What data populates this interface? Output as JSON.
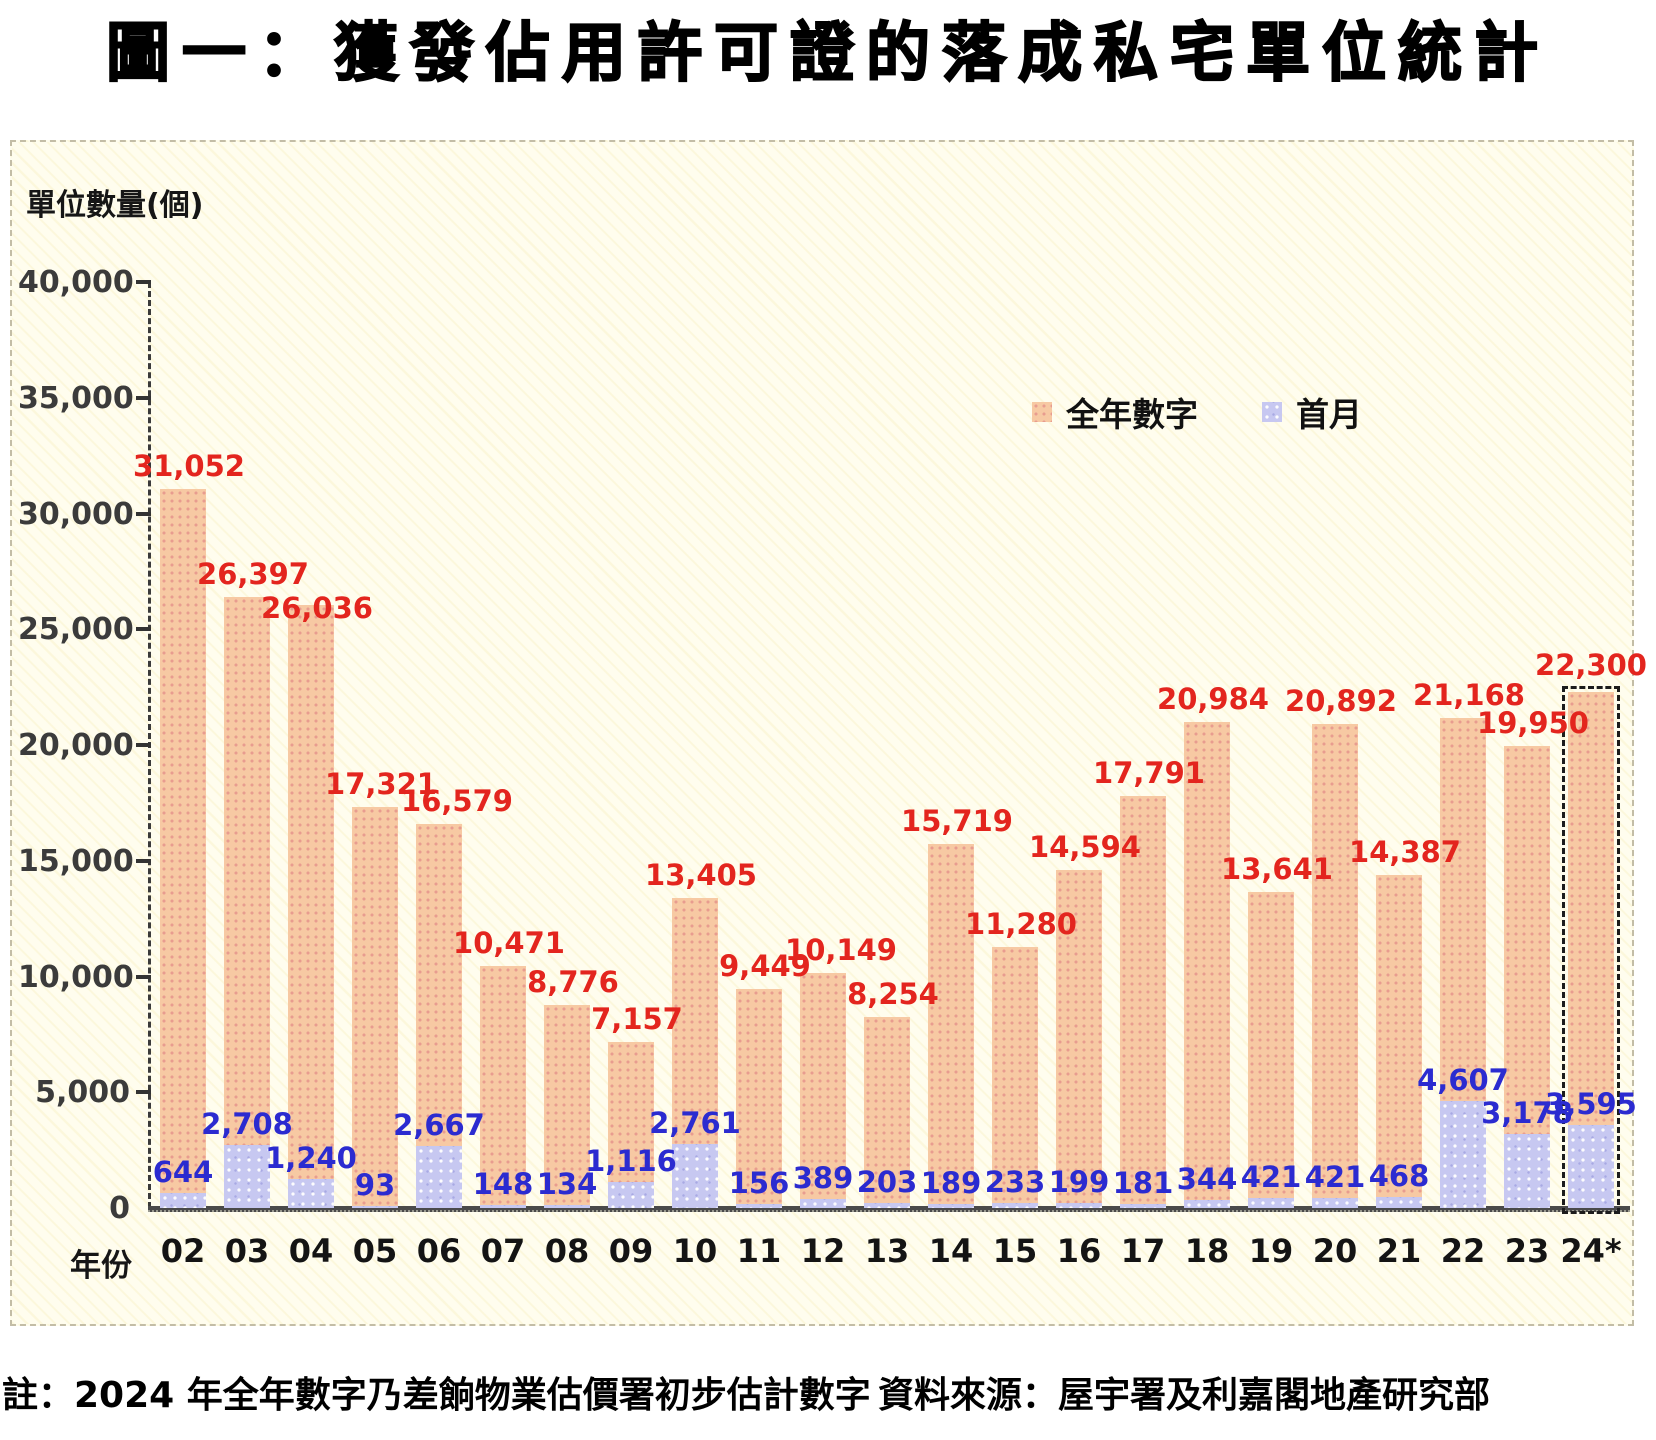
{
  "title": "圖一：獲發佔用許可證的落成私宅單位統計",
  "chart_data": {
    "type": "bar",
    "title": "圖一：獲發佔用許可證的落成私宅單位統計",
    "ylabel": "單位數量(個)",
    "xlabel": "年份",
    "categories": [
      "02",
      "03",
      "04",
      "05",
      "06",
      "07",
      "08",
      "09",
      "10",
      "11",
      "12",
      "13",
      "14",
      "15",
      "16",
      "17",
      "18",
      "19",
      "20",
      "21",
      "22",
      "23",
      "24*"
    ],
    "series": [
      {
        "name": "全年數字",
        "color": "#F7C9A3",
        "label_color": "#E3251E",
        "values": [
          31052,
          26397,
          26036,
          17321,
          16579,
          10471,
          8776,
          7157,
          13405,
          9449,
          10149,
          8254,
          15719,
          11280,
          14594,
          17791,
          20984,
          13641,
          20892,
          14387,
          21168,
          19950,
          22300
        ]
      },
      {
        "name": "首月",
        "color": "#C7C8F1",
        "label_color": "#2B2BD0",
        "values": [
          644,
          2708,
          1240,
          93,
          2667,
          148,
          134,
          1116,
          2761,
          156,
          389,
          203,
          189,
          233,
          199,
          181,
          344,
          421,
          421,
          468,
          4607,
          3178,
          3595
        ]
      }
    ],
    "ylim": [
      0,
      40000
    ],
    "ytick_step": 5000,
    "yticks": [
      "0",
      "5,000",
      "10,000",
      "15,000",
      "20,000",
      "25,000",
      "30,000",
      "35,000",
      "40,000"
    ],
    "grid": false,
    "legend_position": "top-right",
    "last_bar_style": "dashed-outline",
    "layout_hints": {
      "annual_label_offsets": {
        "2": [
          0,
          26
        ],
        "4": [
          12,
          0
        ],
        "10": [
          12,
          0
        ],
        "22": [
          -6,
          -4
        ]
      }
    }
  },
  "notes": {
    "left": "註：2024 年全年數字乃差餉物業估價署初步估計數字",
    "right": "資料來源：屋宇署及利嘉閣地產研究部"
  }
}
